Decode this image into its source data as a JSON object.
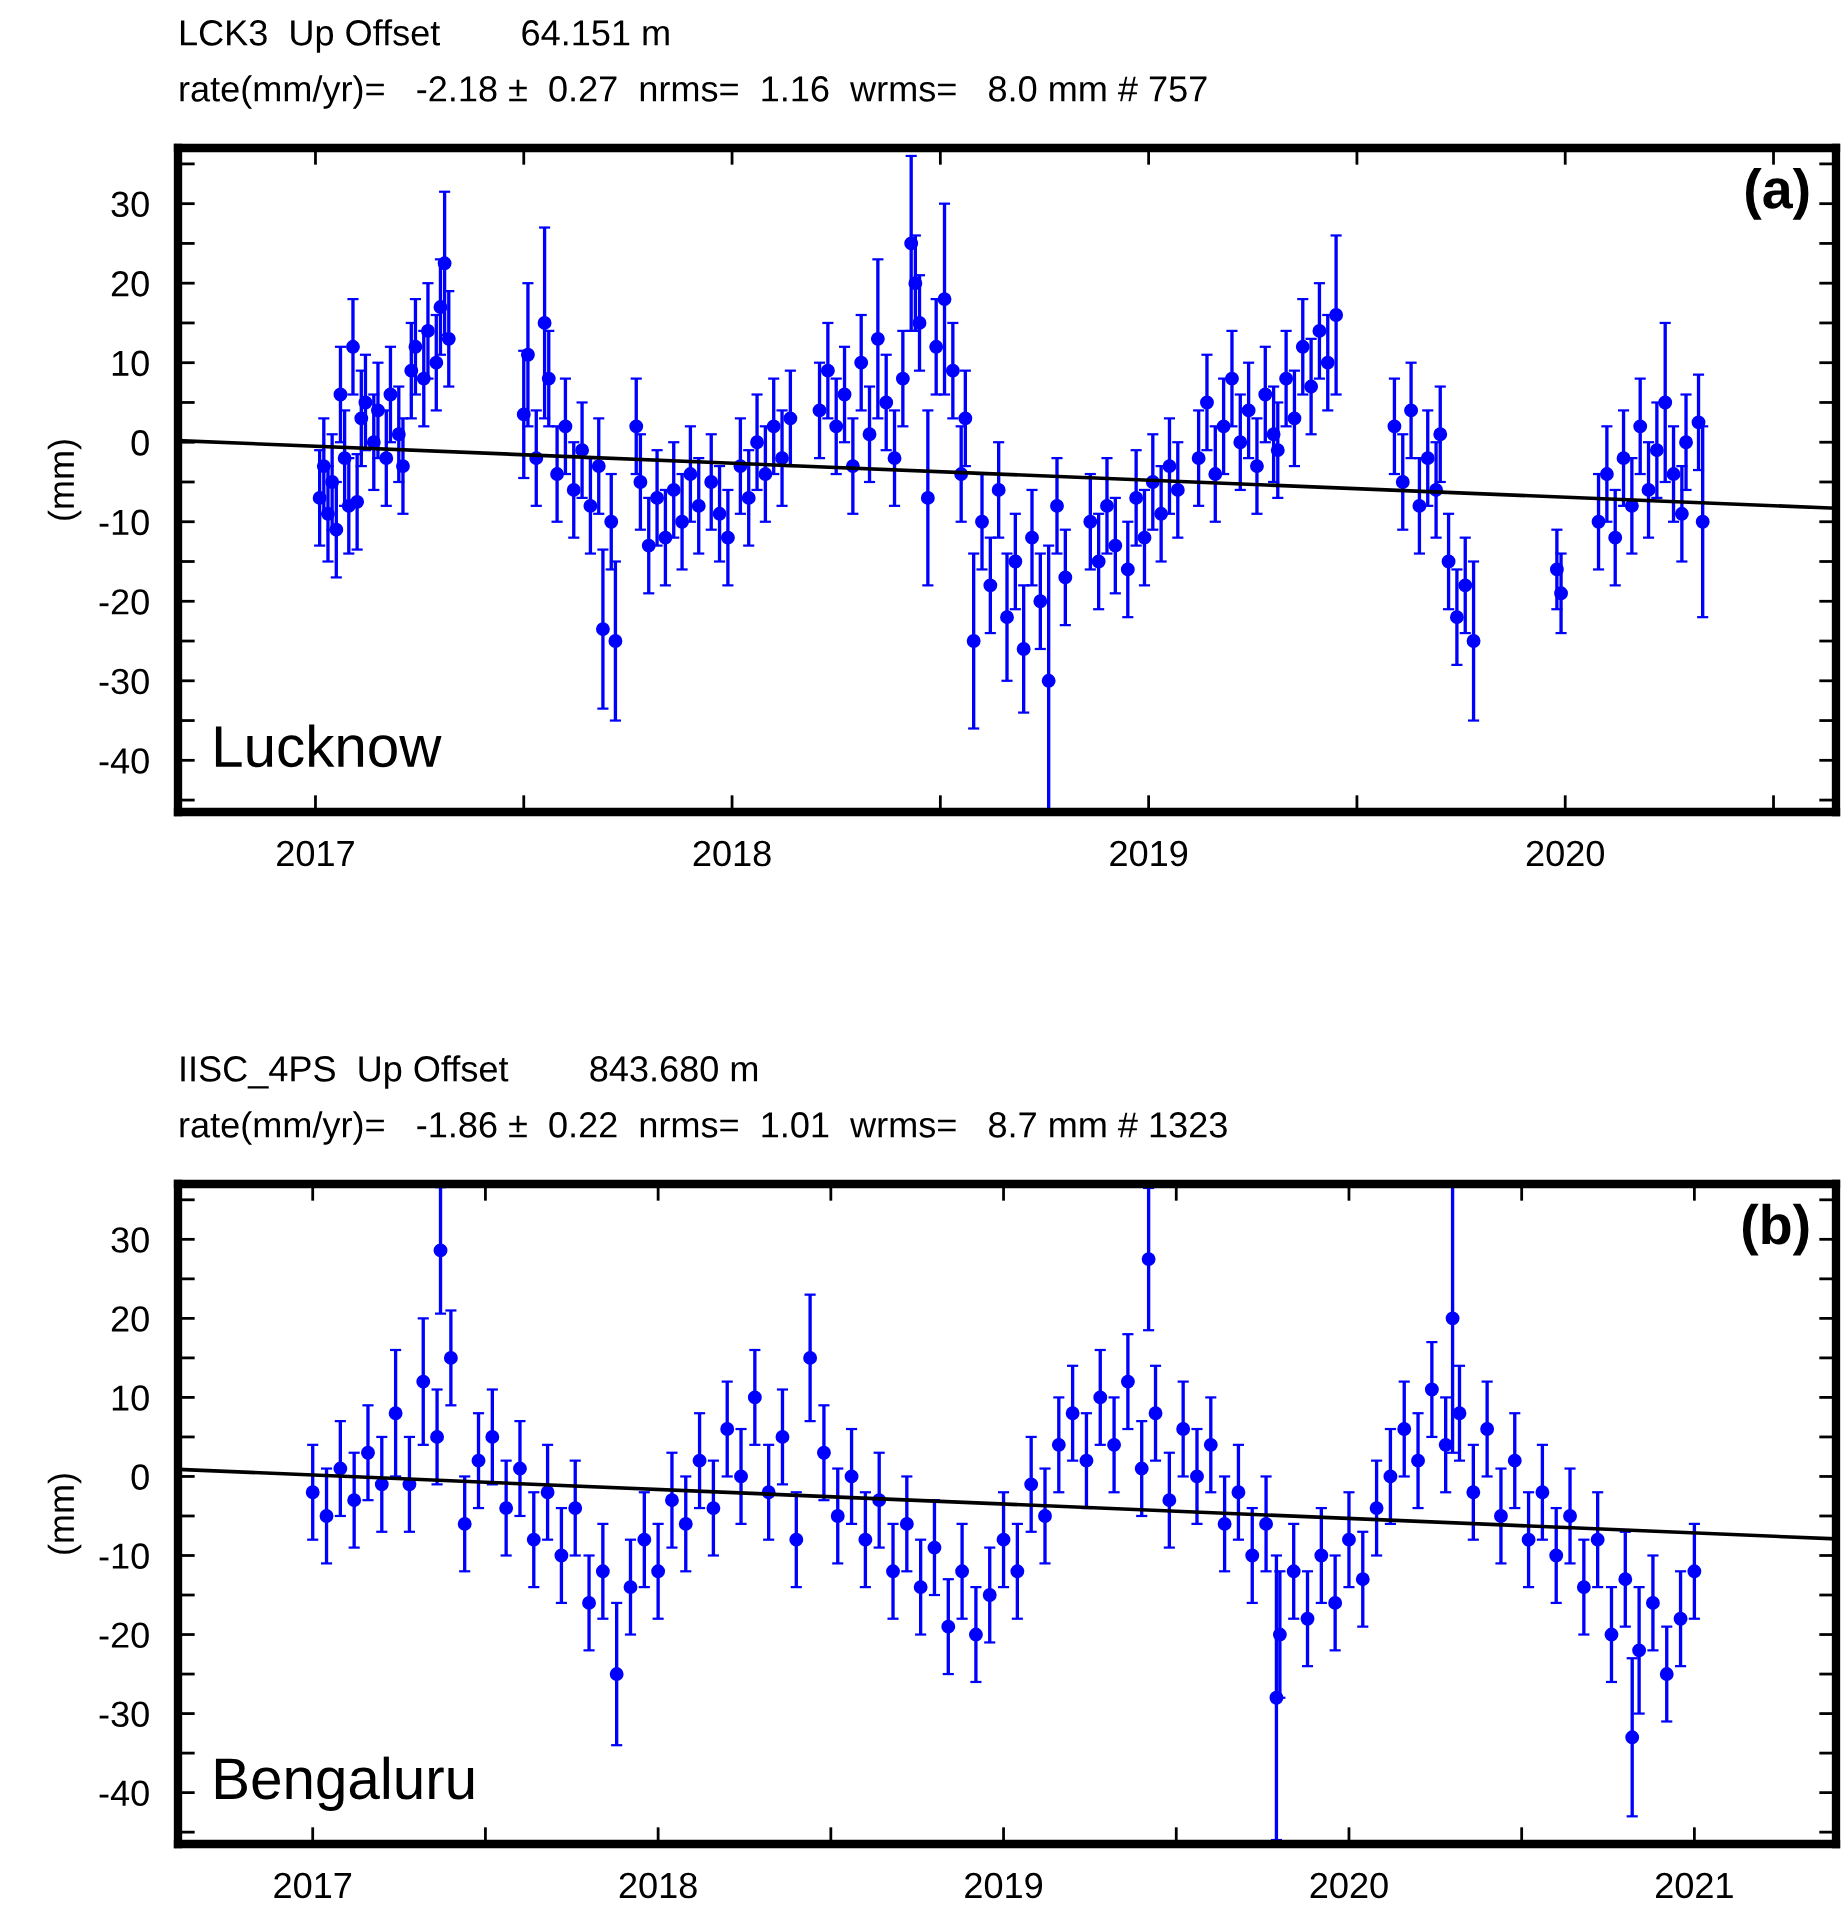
{
  "chart_data": [
    {
      "type": "scatter",
      "title": "LCK3  Up Offset        64.151 m",
      "subtitle": "rate(mm/yr)=   -2.18 ±  0.27  nrms=  1.16  wrms=   8.0 mm # 757",
      "ylabel": "(mm)",
      "annotations": [
        "(a)",
        "Lucknow"
      ],
      "xlim": [
        2016.67,
        2020.65
      ],
      "ylim": [
        -46.5,
        37
      ],
      "xticks": [
        2017,
        {
          "value": 2017.5,
          "label": null
        },
        2018,
        {
          "value": 2018.5,
          "label": null
        },
        2019,
        {
          "value": 2019.5,
          "label": null
        },
        2020,
        {
          "value": 2020.5,
          "label": null
        }
      ],
      "yticks": [
        {
          "value": -45,
          "label": null
        },
        -40,
        {
          "value": -35,
          "label": null
        },
        -30,
        {
          "value": -25,
          "label": null
        },
        -20,
        {
          "value": -15,
          "label": null
        },
        -10,
        {
          "value": -5,
          "label": null
        },
        0,
        {
          "value": 5,
          "label": null
        },
        10,
        {
          "value": 15,
          "label": null
        },
        20,
        {
          "value": 25,
          "label": null
        },
        30,
        {
          "value": 35,
          "label": null
        }
      ],
      "grid": false,
      "legend": false,
      "series": [
        {
          "type": "scatter",
          "color": "#0000ff",
          "marker": "circle",
          "x": [
            2017.01,
            2017.02,
            2017.03,
            2017.04,
            2017.05,
            2017.06,
            2017.07,
            2017.08,
            2017.09,
            2017.1,
            2017.11,
            2017.12,
            2017.14,
            2017.15,
            2017.17,
            2017.18,
            2017.2,
            2017.21,
            2017.23,
            2017.24,
            2017.26,
            2017.27,
            2017.29,
            2017.3,
            2017.31,
            2017.32,
            2017.5,
            2017.51,
            2017.53,
            2017.55,
            2017.56,
            2017.58,
            2017.6,
            2017.62,
            2017.64,
            2017.66,
            2017.68,
            2017.69,
            2017.71,
            2017.72,
            2017.77,
            2017.78,
            2017.8,
            2017.82,
            2017.84,
            2017.86,
            2017.88,
            2017.9,
            2017.92,
            2017.95,
            2017.97,
            2017.99,
            2018.02,
            2018.04,
            2018.06,
            2018.08,
            2018.1,
            2018.12,
            2018.14,
            2018.21,
            2018.23,
            2018.25,
            2018.27,
            2018.29,
            2018.31,
            2018.33,
            2018.35,
            2018.37,
            2018.39,
            2018.41,
            2018.43,
            2018.44,
            2018.45,
            2018.47,
            2018.49,
            2018.51,
            2018.53,
            2018.55,
            2018.56,
            2018.58,
            2018.6,
            2018.62,
            2018.64,
            2018.66,
            2018.68,
            2018.7,
            2018.72,
            2018.74,
            2018.76,
            2018.78,
            2018.8,
            2018.86,
            2018.88,
            2018.9,
            2018.92,
            2018.95,
            2018.97,
            2018.99,
            2019.01,
            2019.03,
            2019.05,
            2019.07,
            2019.12,
            2019.14,
            2019.16,
            2019.18,
            2019.2,
            2019.22,
            2019.24,
            2019.26,
            2019.28,
            2019.3,
            2019.31,
            2019.33,
            2019.35,
            2019.37,
            2019.39,
            2019.41,
            2019.43,
            2019.45,
            2019.59,
            2019.61,
            2019.63,
            2019.65,
            2019.67,
            2019.69,
            2019.7,
            2019.72,
            2019.74,
            2019.76,
            2019.78,
            2019.98,
            2019.99,
            2020.08,
            2020.1,
            2020.12,
            2020.14,
            2020.16,
            2020.18,
            2020.2,
            2020.22,
            2020.24,
            2020.26,
            2020.28,
            2020.29,
            2020.32,
            2020.33
          ],
          "values": [
            -7,
            -3,
            -9,
            -5,
            -11,
            6,
            -2,
            -8,
            12,
            -7.5,
            3,
            5,
            0,
            4,
            -2,
            6,
            1,
            -3,
            9,
            12,
            8,
            14,
            10,
            17,
            22.5,
            13,
            3.5,
            11,
            -2,
            15,
            8,
            -4,
            2,
            -6,
            -1,
            -8,
            -3,
            -23.5,
            -10,
            -25,
            2,
            -5,
            -13,
            -7,
            -12,
            -6,
            -10,
            -4,
            -8,
            -5,
            -9,
            -12,
            -3,
            -7,
            0,
            -4,
            2,
            -2,
            3,
            4,
            9,
            2,
            6,
            -3,
            10,
            1,
            13,
            5,
            -2,
            8,
            25,
            20,
            15,
            -7,
            12,
            18,
            9,
            -4,
            3,
            -25,
            -10,
            -18,
            -6,
            -22,
            -15,
            -26,
            -12,
            -20,
            -30,
            -8,
            -17,
            -10,
            -15,
            -8,
            -13,
            -16,
            -7,
            -12,
            -5,
            -9,
            -3,
            -6,
            -2,
            5,
            -4,
            2,
            8,
            0,
            4,
            -3,
            6,
            1,
            -1,
            8,
            3,
            12,
            7,
            14,
            10,
            16,
            2,
            -5,
            4,
            -8,
            -2,
            -6,
            1,
            -15,
            -22,
            -18,
            -25,
            -16,
            -19,
            -10,
            -4,
            -12,
            -2,
            -8,
            2,
            -6,
            -1,
            5,
            -4,
            -9,
            0,
            2.5,
            -10
          ],
          "errors": [
            6,
            6,
            6,
            6,
            6,
            6,
            6,
            6,
            6,
            6,
            6,
            6,
            6,
            6,
            6,
            6,
            6,
            6,
            6,
            6,
            6,
            6,
            6,
            6,
            9,
            6,
            8,
            9,
            6,
            12,
            6,
            6,
            6,
            6,
            6,
            6,
            6,
            10,
            6,
            10,
            6,
            6,
            6,
            6,
            6,
            6,
            6,
            6,
            6,
            6,
            6,
            6,
            6,
            6,
            6,
            6,
            6,
            6,
            6,
            6,
            6,
            6,
            6,
            6,
            6,
            6,
            10,
            6,
            6,
            6,
            11,
            6,
            6,
            11,
            6,
            12,
            6,
            6,
            6,
            11,
            6,
            6,
            6,
            8,
            6,
            8,
            6,
            6,
            17,
            6,
            6,
            6,
            6,
            6,
            6,
            6,
            6,
            6,
            6,
            6,
            6,
            6,
            6,
            6,
            6,
            6,
            6,
            6,
            6,
            6,
            6,
            6,
            6,
            6,
            6,
            6,
            6,
            6,
            6,
            10,
            6,
            6,
            6,
            6,
            6,
            6,
            6,
            6,
            6,
            6,
            10,
            5,
            5,
            6,
            6,
            6,
            6,
            6,
            6,
            6,
            6,
            10,
            6,
            6,
            6,
            6,
            12
          ]
        },
        {
          "type": "line",
          "color": "#000000",
          "x": [
            2016.67,
            2020.65
          ],
          "values": [
            0.2,
            -8.3
          ]
        }
      ]
    },
    {
      "type": "scatter",
      "title": "IISC_4PS  Up Offset        843.680 m",
      "subtitle": "rate(mm/yr)=   -1.86 ±  0.22  nrms=  1.01  wrms=   8.7 mm # 1323",
      "ylabel": "(mm)",
      "annotations": [
        "(b)",
        "Bengaluru"
      ],
      "xlim": [
        2016.61,
        2021.41
      ],
      "ylim": [
        -46.5,
        37
      ],
      "xticks": [
        2017,
        {
          "value": 2017.5,
          "label": null
        },
        2018,
        {
          "value": 2018.5,
          "label": null
        },
        2019,
        {
          "value": 2019.5,
          "label": null
        },
        2020,
        {
          "value": 2020.5,
          "label": null
        },
        2021
      ],
      "yticks": [
        {
          "value": -45,
          "label": null
        },
        -40,
        {
          "value": -35,
          "label": null
        },
        -30,
        {
          "value": -25,
          "label": null
        },
        -20,
        {
          "value": -15,
          "label": null
        },
        -10,
        {
          "value": -5,
          "label": null
        },
        0,
        {
          "value": 5,
          "label": null
        },
        10,
        {
          "value": 15,
          "label": null
        },
        20,
        {
          "value": 25,
          "label": null
        },
        30,
        {
          "value": 35,
          "label": null
        }
      ],
      "grid": false,
      "legend": false,
      "series": [
        {
          "type": "scatter",
          "color": "#0000ff",
          "marker": "circle",
          "x": [
            2017.0,
            2017.04,
            2017.08,
            2017.12,
            2017.16,
            2017.2,
            2017.24,
            2017.28,
            2017.32,
            2017.36,
            2017.37,
            2017.4,
            2017.44,
            2017.48,
            2017.52,
            2017.56,
            2017.6,
            2017.64,
            2017.68,
            2017.72,
            2017.76,
            2017.8,
            2017.84,
            2017.88,
            2017.92,
            2017.96,
            2018.0,
            2018.04,
            2018.08,
            2018.12,
            2018.16,
            2018.2,
            2018.24,
            2018.28,
            2018.32,
            2018.36,
            2018.4,
            2018.44,
            2018.48,
            2018.52,
            2018.56,
            2018.6,
            2018.64,
            2018.68,
            2018.72,
            2018.76,
            2018.8,
            2018.84,
            2018.88,
            2018.92,
            2018.96,
            2019.0,
            2019.04,
            2019.08,
            2019.12,
            2019.16,
            2019.2,
            2019.24,
            2019.28,
            2019.32,
            2019.36,
            2019.4,
            2019.42,
            2019.44,
            2019.48,
            2019.52,
            2019.56,
            2019.6,
            2019.64,
            2019.68,
            2019.72,
            2019.76,
            2019.79,
            2019.8,
            2019.84,
            2019.88,
            2019.92,
            2019.96,
            2020.0,
            2020.04,
            2020.08,
            2020.12,
            2020.16,
            2020.2,
            2020.24,
            2020.28,
            2020.3,
            2020.32,
            2020.36,
            2020.4,
            2020.44,
            2020.48,
            2020.52,
            2020.56,
            2020.6,
            2020.64,
            2020.68,
            2020.72,
            2020.76,
            2020.8,
            2020.82,
            2020.84,
            2020.88,
            2020.92,
            2020.96,
            2021.0
          ],
          "values": [
            -2,
            -5,
            1,
            -3,
            3,
            -1,
            8,
            -1,
            12,
            5,
            28.6,
            15,
            -6,
            2,
            5,
            -4,
            1,
            -8,
            -2,
            -10,
            -4,
            -16,
            -12,
            -25,
            -14,
            -8,
            -12,
            -3,
            -6,
            2,
            -4,
            6,
            0,
            10,
            -2,
            5,
            -8,
            15,
            3,
            -5,
            0,
            -8,
            -3,
            -12,
            -6,
            -14,
            -9,
            -19,
            -12,
            -20,
            -15,
            -8,
            -12,
            -1,
            -5,
            4,
            8,
            2,
            10,
            4,
            12,
            1,
            27.5,
            8,
            -3,
            6,
            0,
            4,
            -6,
            -2,
            -10,
            -6,
            -28,
            -20,
            -12,
            -18,
            -10,
            -16,
            -8,
            -13,
            -4,
            0,
            6,
            2,
            11,
            4,
            20,
            8,
            -2,
            6,
            -5,
            2,
            -8,
            -2,
            -10,
            -5,
            -14,
            -8,
            -20,
            -13,
            -33,
            -22,
            -16,
            -25,
            -18,
            -12
          ],
          "errors": [
            6,
            6,
            6,
            6,
            6,
            6,
            8,
            6,
            8,
            6,
            8,
            6,
            6,
            6,
            6,
            6,
            6,
            6,
            6,
            6,
            6,
            6,
            6,
            9,
            6,
            6,
            6,
            6,
            6,
            6,
            6,
            6,
            6,
            6,
            6,
            6,
            6,
            8,
            6,
            6,
            6,
            6,
            6,
            6,
            6,
            6,
            6,
            6,
            6,
            6,
            6,
            6,
            6,
            6,
            6,
            6,
            6,
            6,
            6,
            6,
            6,
            6,
            9,
            6,
            6,
            6,
            6,
            6,
            6,
            6,
            6,
            6,
            18,
            8,
            6,
            6,
            6,
            6,
            6,
            6,
            6,
            6,
            6,
            6,
            6,
            6,
            17,
            6,
            6,
            6,
            6,
            6,
            6,
            6,
            6,
            6,
            6,
            6,
            6,
            6,
            10,
            8,
            6,
            6,
            6,
            6
          ]
        },
        {
          "type": "line",
          "color": "#000000",
          "x": [
            2016.61,
            2021.41
          ],
          "values": [
            0.9,
            -7.9
          ]
        }
      ]
    }
  ]
}
